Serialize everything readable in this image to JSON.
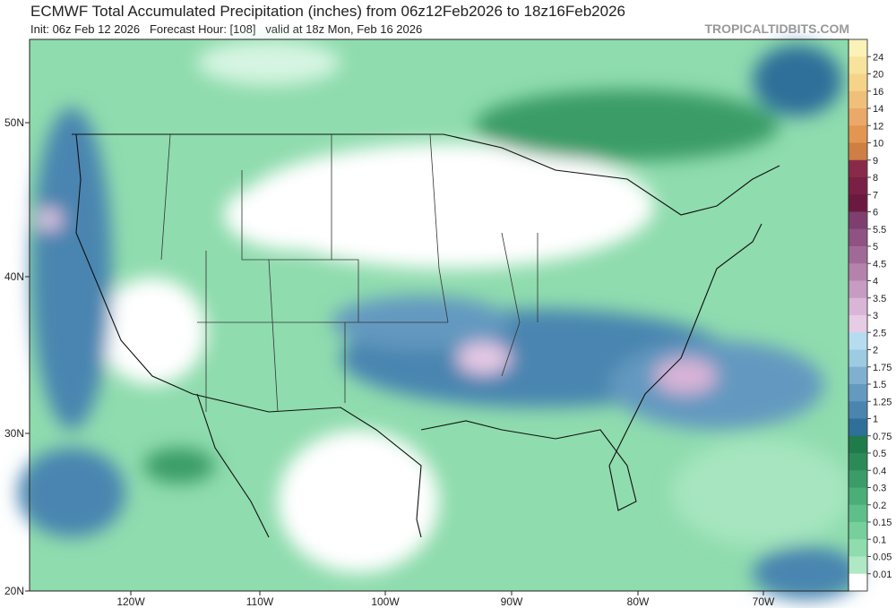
{
  "header": {
    "title": "ECMWF Total Accumulated Precipitation (inches) from 06z12Feb2026 to 18z16Feb2026",
    "subtitle": "Init: 06z Feb 12 2026   Forecast Hour: [108]   valid at 18z Mon, Feb 16 2026",
    "source": "TROPICALTIDBITS.COM"
  },
  "map": {
    "lat_labels": [
      "50N",
      "40N",
      "30N",
      "20N"
    ],
    "lon_labels": [
      "120W",
      "110W",
      "100W",
      "90W",
      "80W",
      "70W"
    ]
  },
  "colorbar": {
    "labels": [
      "24",
      "20",
      "16",
      "14",
      "12",
      "10",
      "9",
      "8",
      "7",
      "6",
      "5.5",
      "5",
      "4.5",
      "4",
      "3.5",
      "3",
      "2.5",
      "2",
      "1.75",
      "1.5",
      "1.25",
      "1",
      "0.75",
      "0.5",
      "0.4",
      "0.3",
      "0.2",
      "0.15",
      "0.1",
      "0.05",
      "0.01"
    ]
  }
}
